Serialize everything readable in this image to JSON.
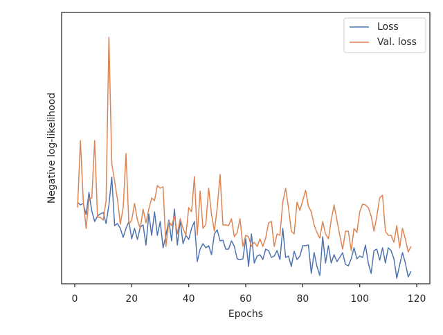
{
  "chart_data": {
    "type": "line",
    "xlabel": "Epochs",
    "ylabel": "Negative log-likelihood",
    "x": [
      1,
      2,
      3,
      4,
      5,
      6,
      7,
      8,
      9,
      10,
      11,
      12,
      13,
      14,
      15,
      16,
      17,
      18,
      19,
      20,
      21,
      22,
      23,
      24,
      25,
      26,
      27,
      28,
      29,
      30,
      31,
      32,
      33,
      34,
      35,
      36,
      37,
      38,
      39,
      40,
      41,
      42,
      43,
      44,
      45,
      46,
      47,
      48,
      49,
      50,
      51,
      52,
      53,
      54,
      55,
      56,
      57,
      58,
      59,
      60,
      61,
      62,
      63,
      64,
      65,
      66,
      67,
      68,
      69,
      70,
      71,
      72,
      73,
      74,
      75,
      76,
      77,
      78,
      79,
      80,
      81,
      82,
      83,
      84,
      85,
      86,
      87,
      88,
      89,
      90,
      91,
      92,
      93,
      94,
      95,
      96,
      97,
      98,
      99,
      100,
      101,
      102,
      103,
      104,
      105,
      106,
      107,
      108,
      109,
      110,
      111,
      112,
      113,
      114,
      115,
      116,
      117,
      118
    ],
    "series": [
      {
        "name": "Loss",
        "color": "#4c72b0",
        "values": [
          118,
          114,
          116,
          100,
          132,
          105,
          90,
          98,
          101,
          103,
          87,
          114,
          154,
          84,
          87,
          80,
          67,
          80,
          90,
          65,
          80,
          64,
          82,
          85,
          56,
          101,
          70,
          104,
          70,
          90,
          52,
          70,
          92,
          62,
          108,
          56,
          92,
          58,
          70,
          64,
          80,
          90,
          32,
          50,
          58,
          52,
          55,
          42,
          72,
          78,
          62,
          63,
          50,
          50,
          62,
          54,
          36,
          35,
          36,
          65,
          25,
          72,
          30,
          40,
          42,
          35,
          50,
          48,
          38,
          40,
          48,
          35,
          80,
          38,
          40,
          25,
          47,
          35,
          40,
          55,
          55,
          56,
          15,
          45,
          25,
          12,
          68,
          30,
          55,
          30,
          42,
          32,
          38,
          45,
          28,
          26,
          36,
          52,
          36,
          40,
          38,
          56,
          30,
          15,
          48,
          50,
          34,
          52,
          30,
          52,
          48,
          36,
          8,
          27,
          45,
          30,
          10,
          18
        ]
      },
      {
        "name": "Val. loss",
        "color": "#dd8452",
        "values": [
          110,
          207,
          120,
          80,
          122,
          124,
          207,
          96,
          96,
          92,
          120,
          356,
          174,
          148,
          122,
          86,
          110,
          188,
          86,
          92,
          116,
          92,
          80,
          108,
          88,
          108,
          124,
          120,
          142,
          138,
          140,
          54,
          90,
          84,
          98,
          72,
          94,
          80,
          70,
          110,
          104,
          155,
          70,
          134,
          80,
          86,
          138,
          100,
          76,
          110,
          158,
          85,
          85,
          84,
          94,
          68,
          74,
          94,
          54,
          70,
          68,
          54,
          60,
          54,
          65,
          54,
          66,
          88,
          90,
          54,
          72,
          70,
          118,
          138,
          110,
          76,
          72,
          118,
          106,
          120,
          135,
          112,
          104,
          85,
          74,
          66,
          90,
          72,
          65,
          92,
          114,
          92,
          70,
          50,
          76,
          76,
          48,
          80,
          74,
          104,
          115,
          114,
          110,
          98,
          76,
          98,
          124,
          128,
          76,
          70,
          70,
          60,
          84,
          52,
          80,
          65,
          46,
          54
        ]
      }
    ],
    "xlim": [
      -4.6,
      124.6
    ],
    "xticks": [
      0,
      20,
      40,
      60,
      80,
      100,
      120
    ],
    "ylim": [
      0,
      392
    ],
    "legend": "upper right"
  }
}
